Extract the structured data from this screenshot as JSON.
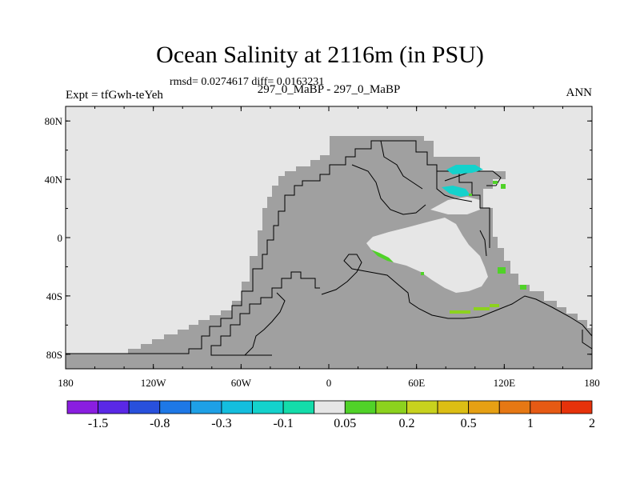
{
  "chart_data": {
    "type": "heatmap",
    "title": "Ocean Salinity at 2116m (in PSU)",
    "stats": "rmsd= 0.0274617 diff= 0.0163231",
    "left_label": "Expt = tfGwh-teYeh",
    "center_label": "297_0_MaBP - 297_0_MaBP",
    "right_label": "ANN",
    "x_ticks": [
      "180",
      "120W",
      "60W",
      "0",
      "60E",
      "120E",
      "180"
    ],
    "y_ticks": [
      "80N",
      "40N",
      "0",
      "40S",
      "80S"
    ],
    "xlim": [
      -180,
      180
    ],
    "ylim": [
      -90,
      90
    ],
    "colorbar": {
      "colors": [
        "#8a1ee0",
        "#5a28e6",
        "#2850dc",
        "#1e78e6",
        "#1ea0e6",
        "#14bede",
        "#14d2cc",
        "#14dcaa",
        "#e6e6e6",
        "#50d228",
        "#8cd21e",
        "#c8d21e",
        "#dcbe14",
        "#e6a014",
        "#e67814",
        "#e65a14",
        "#e6320a"
      ],
      "labels": [
        "-1.5",
        "-0.8",
        "-0.3",
        "-0.1",
        "0.05",
        "0.2",
        "0.5",
        "1",
        "2"
      ]
    },
    "colors": {
      "land": "#e6e6e6",
      "ocean": "#a0a0a0"
    }
  }
}
